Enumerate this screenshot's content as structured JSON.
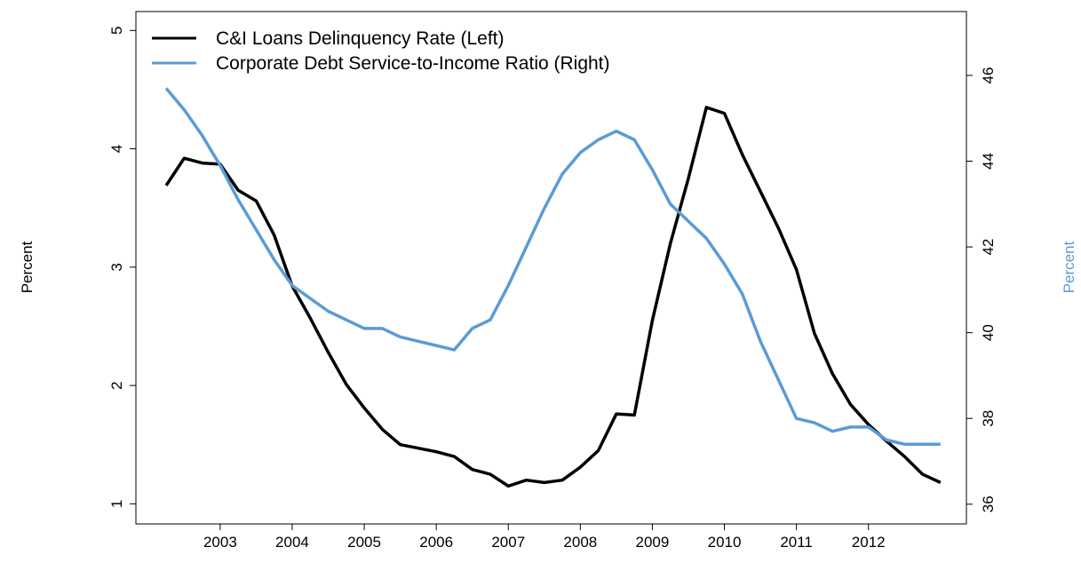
{
  "chart_data": {
    "type": "line",
    "x": [
      2002.25,
      2002.5,
      2002.75,
      2003,
      2003.25,
      2003.5,
      2003.75,
      2004,
      2004.25,
      2004.5,
      2004.75,
      2005,
      2005.25,
      2005.5,
      2005.75,
      2006,
      2006.25,
      2006.5,
      2006.75,
      2007,
      2007.25,
      2007.5,
      2007.75,
      2008,
      2008.25,
      2008.5,
      2008.75,
      2009,
      2009.25,
      2009.5,
      2009.75,
      2010,
      2010.25,
      2010.5,
      2010.75,
      2011,
      2011.25,
      2011.5,
      2011.75,
      2012,
      2012.25,
      2012.5,
      2012.75,
      2013
    ],
    "series": [
      {
        "name": "C&I Loans Delinquency Rate (Left)",
        "color": "#000000",
        "axis": "y",
        "values": [
          3.69,
          3.92,
          3.88,
          3.87,
          3.65,
          3.56,
          3.27,
          2.84,
          2.57,
          2.28,
          2.01,
          1.81,
          1.63,
          1.5,
          1.47,
          1.44,
          1.4,
          1.29,
          1.25,
          1.15,
          1.2,
          1.18,
          1.2,
          1.31,
          1.45,
          1.76,
          1.75,
          2.55,
          3.2,
          3.75,
          4.35,
          4.3,
          3.95,
          3.64,
          3.33,
          2.98,
          2.44,
          2.1,
          1.84,
          1.67,
          1.53,
          1.4,
          1.25,
          1.18
        ]
      },
      {
        "name": "Corporate Debt Service-to-Income Ratio (Right)",
        "color": "#5b9bd5",
        "axis": "y2",
        "values": [
          45.7,
          45.2,
          44.6,
          43.9,
          43.1,
          42.4,
          41.7,
          41.1,
          40.8,
          40.5,
          40.3,
          40.1,
          40.1,
          39.9,
          39.8,
          39.7,
          39.6,
          40.1,
          40.3,
          41.1,
          42.0,
          42.9,
          43.7,
          44.2,
          44.5,
          44.7,
          44.5,
          43.8,
          43.0,
          42.6,
          42.2,
          41.6,
          40.9,
          39.8,
          38.9,
          38.0,
          37.9,
          37.7,
          37.8,
          37.8,
          37.5,
          37.4,
          37.4,
          37.4
        ]
      }
    ],
    "y_label": "Percent",
    "y2_label": "Percent",
    "y2_label_color": "#5b9bd5",
    "xlim": [
      2001.83,
      2013.36
    ],
    "xticks": [
      2003,
      2004,
      2005,
      2006,
      2007,
      2008,
      2009,
      2010,
      2011,
      2012
    ],
    "ylim": [
      0.83,
      5.16
    ],
    "yticks": [
      1,
      2,
      3,
      4,
      5
    ],
    "y2lim": [
      35.54,
      47.49
    ],
    "y2ticks": [
      36,
      38,
      40,
      42,
      44,
      46
    ],
    "legend": "top-left",
    "grid": false
  }
}
